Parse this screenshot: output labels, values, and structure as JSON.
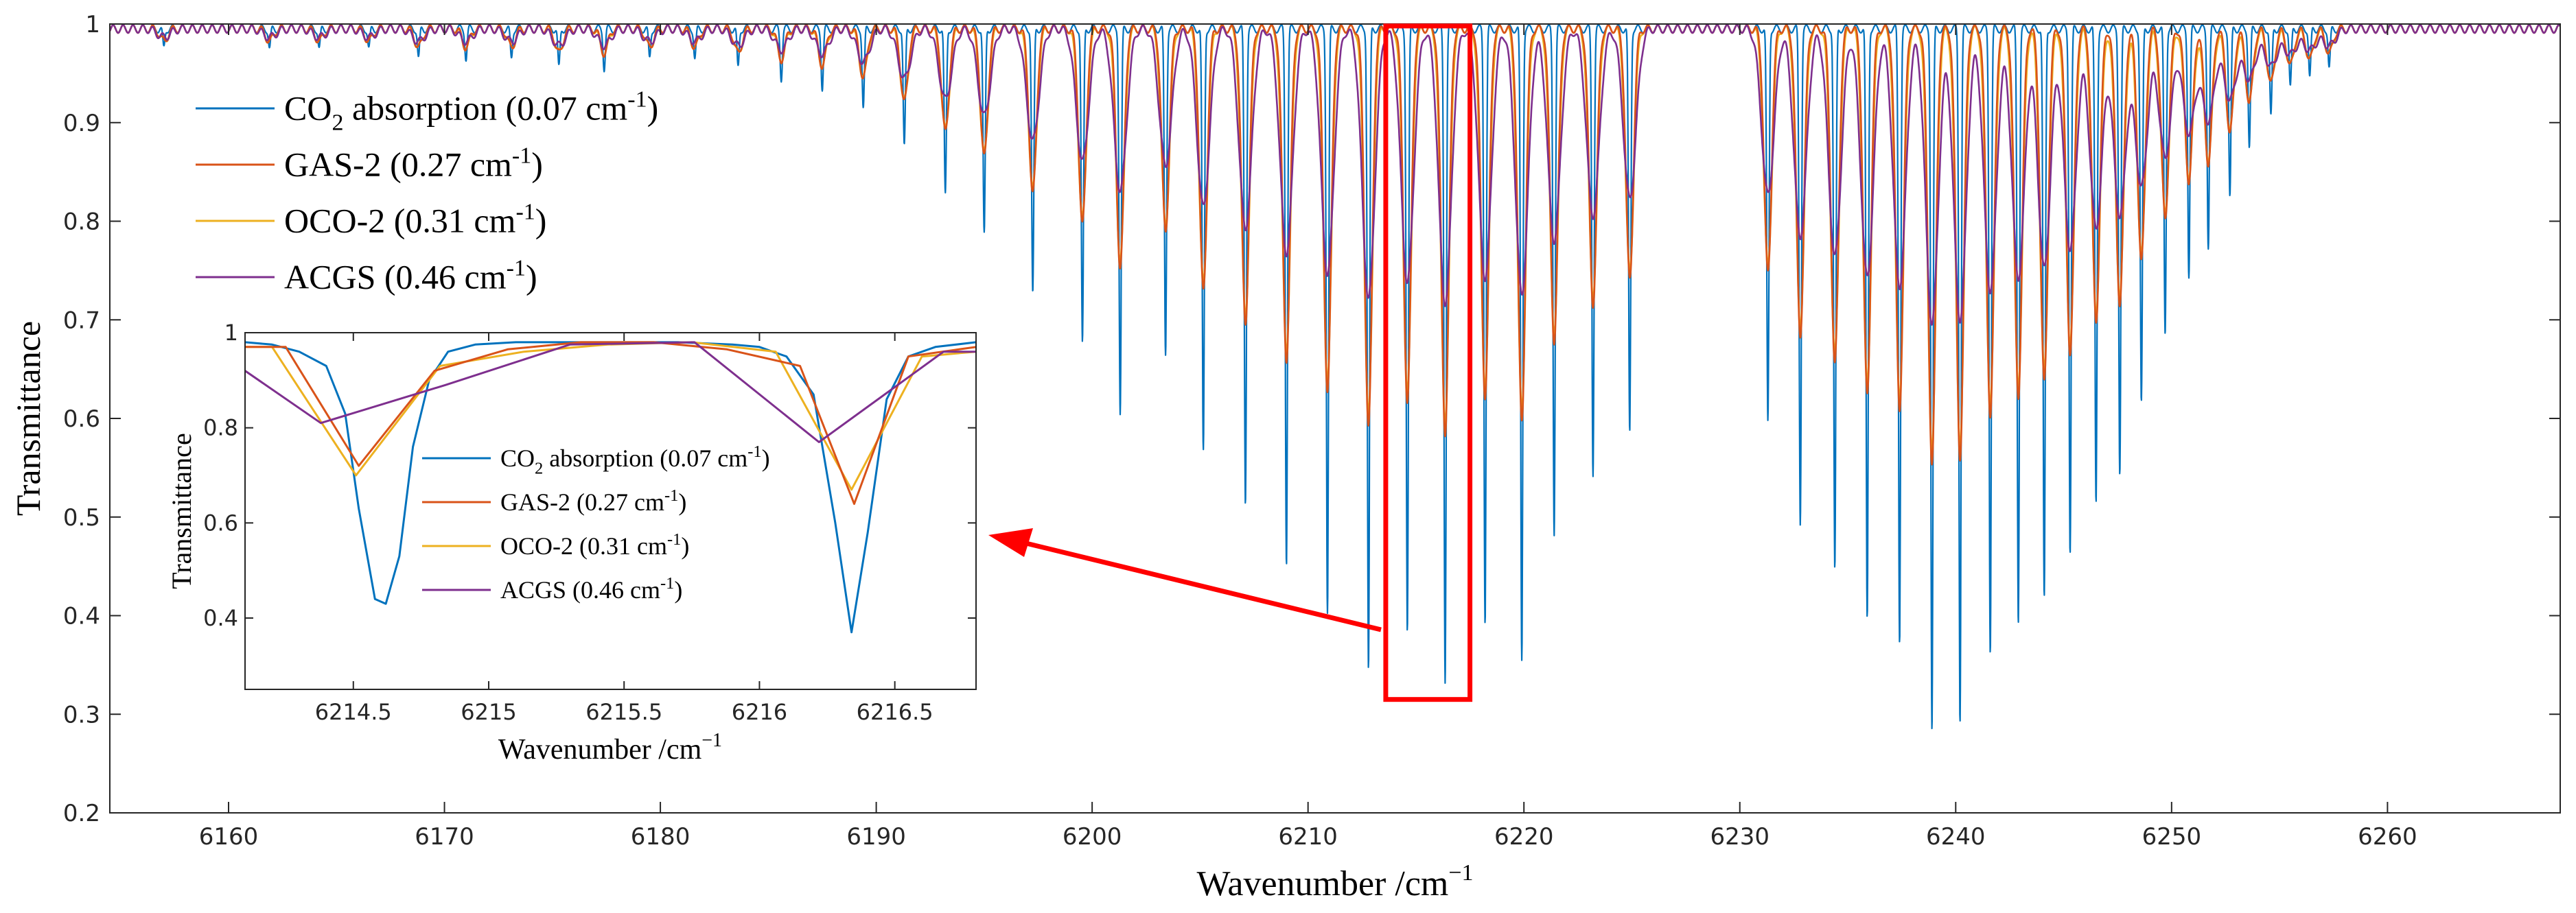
{
  "chart_data": {
    "type": "line",
    "main": {
      "xlabel": "Wavenumber /cm",
      "xlabel_sup": "−1",
      "ylabel": "Transmittance",
      "xlim": [
        6154.5,
        6268
      ],
      "ylim": [
        0.2,
        1.0
      ],
      "xticks": [
        6160,
        6170,
        6180,
        6190,
        6200,
        6210,
        6220,
        6230,
        6240,
        6250,
        6260
      ],
      "yticks": [
        0.2,
        0.3,
        0.4,
        0.5,
        0.6,
        0.7,
        0.8,
        0.9,
        1
      ],
      "ytick_labels": [
        "0.2",
        "0.3",
        "0.4",
        "0.5",
        "0.6",
        "0.7",
        "0.8",
        "0.9",
        "1"
      ],
      "legend": [
        {
          "key": "co2",
          "pre": "CO",
          "sub": "2",
          "post": " absorption (0.07 cm",
          "sup": "-1",
          "end": ")",
          "color": "#0072BD"
        },
        {
          "key": "gas2",
          "pre": "GAS-2 (0.27 cm",
          "sub": "",
          "post": "",
          "sup": "-1",
          "end": ")",
          "color": "#D95319"
        },
        {
          "key": "oco2",
          "pre": "OCO-2 (0.31 cm",
          "sub": "",
          "post": "",
          "sup": "-1",
          "end": ")",
          "color": "#EDB120"
        },
        {
          "key": "acgs",
          "pre": "ACGS (0.46 cm",
          "sub": "",
          "post": "",
          "sup": "-1",
          "end": ")",
          "color": "#7E2F8E"
        }
      ],
      "lines": [
        {
          "x": 6195.0,
          "d": 0.21
        },
        {
          "x": 6197.25,
          "d": 0.27
        },
        {
          "x": 6199.55,
          "d": 0.32
        },
        {
          "x": 6201.3,
          "d": 0.39
        },
        {
          "x": 6203.4,
          "d": 0.33
        },
        {
          "x": 6205.15,
          "d": 0.43
        },
        {
          "x": 6207.1,
          "d": 0.48
        },
        {
          "x": 6209.0,
          "d": 0.54
        },
        {
          "x": 6210.9,
          "d": 0.59
        },
        {
          "x": 6212.8,
          "d": 0.65
        },
        {
          "x": 6214.6,
          "d": 0.61
        },
        {
          "x": 6216.35,
          "d": 0.66
        },
        {
          "x": 6218.2,
          "d": 0.6
        },
        {
          "x": 6219.9,
          "d": 0.64
        },
        {
          "x": 6221.4,
          "d": 0.51
        },
        {
          "x": 6223.2,
          "d": 0.45
        },
        {
          "x": 6224.9,
          "d": 0.41
        },
        {
          "x": 6231.3,
          "d": 0.4
        },
        {
          "x": 6232.8,
          "d": 0.5
        },
        {
          "x": 6234.4,
          "d": 0.55
        },
        {
          "x": 6235.9,
          "d": 0.6
        },
        {
          "x": 6237.4,
          "d": 0.62
        },
        {
          "x": 6238.9,
          "d": 0.71
        },
        {
          "x": 6240.2,
          "d": 0.7
        },
        {
          "x": 6241.6,
          "d": 0.63
        },
        {
          "x": 6242.9,
          "d": 0.6
        },
        {
          "x": 6244.1,
          "d": 0.58
        },
        {
          "x": 6245.3,
          "d": 0.53
        },
        {
          "x": 6246.5,
          "d": 0.48
        },
        {
          "x": 6247.6,
          "d": 0.45
        },
        {
          "x": 6248.6,
          "d": 0.38
        },
        {
          "x": 6249.7,
          "d": 0.31
        },
        {
          "x": 6250.8,
          "d": 0.25
        },
        {
          "x": 6251.7,
          "d": 0.22
        },
        {
          "x": 6252.7,
          "d": 0.17
        },
        {
          "x": 6253.6,
          "d": 0.12
        },
        {
          "x": 6254.6,
          "d": 0.09
        },
        {
          "x": 6255.5,
          "d": 0.06
        },
        {
          "x": 6256.4,
          "d": 0.05
        },
        {
          "x": 6257.3,
          "d": 0.04
        },
        {
          "x": 6193.2,
          "d": 0.17
        },
        {
          "x": 6191.3,
          "d": 0.12
        },
        {
          "x": 6189.4,
          "d": 0.08
        },
        {
          "x": 6187.5,
          "d": 0.06
        },
        {
          "x": 6185.6,
          "d": 0.05
        },
        {
          "x": 6183.6,
          "d": 0.04
        },
        {
          "x": 6181.6,
          "d": 0.03
        },
        {
          "x": 6179.5,
          "d": 0.03
        },
        {
          "x": 6177.4,
          "d": 0.04
        },
        {
          "x": 6175.3,
          "d": 0.04
        },
        {
          "x": 6173.1,
          "d": 0.03
        },
        {
          "x": 6171.0,
          "d": 0.03
        },
        {
          "x": 6168.8,
          "d": 0.03
        },
        {
          "x": 6166.5,
          "d": 0.02
        },
        {
          "x": 6164.2,
          "d": 0.02
        },
        {
          "x": 6161.9,
          "d": 0.02
        },
        {
          "x": 6157.0,
          "d": 0.02
        }
      ],
      "red_box": {
        "x": [
          6213.6,
          6217.5
        ],
        "y": [
          0.315,
          0.998
        ]
      }
    },
    "inset": {
      "xlabel": "Wavenumber /cm",
      "xlabel_sup": "−1",
      "ylabel": "Transmittance",
      "xlim": [
        6214.1,
        6216.8
      ],
      "ylim": [
        0.25,
        1.0
      ],
      "xticks": [
        6214.5,
        6215,
        6215.5,
        6216,
        6216.5
      ],
      "xtick_labels": [
        "6214.5",
        "6215",
        "6215.5",
        "6216",
        "6216.5"
      ],
      "yticks": [
        0.4,
        0.6,
        0.8,
        1
      ],
      "ytick_labels": [
        "0.4",
        "0.6",
        "0.8",
        "1"
      ],
      "series": [
        {
          "name": "CO2 absorption (0.07 cm-1)",
          "color": "#0072BD",
          "x": [
            6214.1,
            6214.2,
            6214.3,
            6214.4,
            6214.47,
            6214.52,
            6214.58,
            6214.62,
            6214.67,
            6214.72,
            6214.78,
            6214.85,
            6214.95,
            6215.1,
            6215.3,
            6215.5,
            6215.7,
            6215.9,
            6216.0,
            6216.1,
            6216.2,
            6216.28,
            6216.34,
            6216.4,
            6216.47,
            6216.55,
            6216.65,
            6216.8
          ],
          "y": [
            0.98,
            0.975,
            0.96,
            0.93,
            0.83,
            0.63,
            0.44,
            0.43,
            0.53,
            0.76,
            0.9,
            0.96,
            0.975,
            0.98,
            0.98,
            0.98,
            0.98,
            0.975,
            0.97,
            0.95,
            0.87,
            0.6,
            0.37,
            0.58,
            0.86,
            0.95,
            0.97,
            0.98
          ]
        },
        {
          "name": "GAS-2 (0.27 cm-1)",
          "color": "#D95319",
          "x": [
            6214.1,
            6214.25,
            6214.52,
            6214.8,
            6215.07,
            6215.34,
            6215.61,
            6215.88,
            6216.15,
            6216.35,
            6216.55,
            6216.8
          ],
          "y": [
            0.97,
            0.97,
            0.72,
            0.92,
            0.965,
            0.98,
            0.98,
            0.965,
            0.93,
            0.64,
            0.95,
            0.97
          ]
        },
        {
          "name": "OCO-2 (0.31 cm-1)",
          "color": "#EDB120",
          "x": [
            6214.1,
            6214.2,
            6214.51,
            6214.82,
            6215.13,
            6215.44,
            6215.75,
            6216.06,
            6216.34,
            6216.6,
            6216.8
          ],
          "y": [
            0.97,
            0.97,
            0.7,
            0.93,
            0.96,
            0.975,
            0.98,
            0.96,
            0.67,
            0.95,
            0.96
          ]
        },
        {
          "name": "ACGS (0.46 cm-1)",
          "color": "#7E2F8E",
          "x": [
            6214.1,
            6214.38,
            6214.84,
            6215.3,
            6215.76,
            6216.22,
            6216.68,
            6216.8
          ],
          "y": [
            0.92,
            0.81,
            0.89,
            0.975,
            0.98,
            0.77,
            0.96,
            0.96
          ]
        }
      ],
      "legend": [
        {
          "key": "co2",
          "pre": "CO",
          "sub": "2",
          "post": " absorption (0.07 cm",
          "sup": "-1",
          "end": ")",
          "color": "#0072BD"
        },
        {
          "key": "gas2",
          "pre": "GAS-2 (0.27 cm",
          "sub": "",
          "post": "",
          "sup": "-1",
          "end": ")",
          "color": "#D95319"
        },
        {
          "key": "oco2",
          "pre": "OCO-2 (0.31 cm",
          "sub": "",
          "post": "",
          "sup": "-1",
          "end": ")",
          "color": "#EDB120"
        },
        {
          "key": "acgs",
          "pre": "ACGS (0.46 cm",
          "sub": "",
          "post": "",
          "sup": "-1",
          "end": ")",
          "color": "#7E2F8E"
        }
      ]
    }
  }
}
